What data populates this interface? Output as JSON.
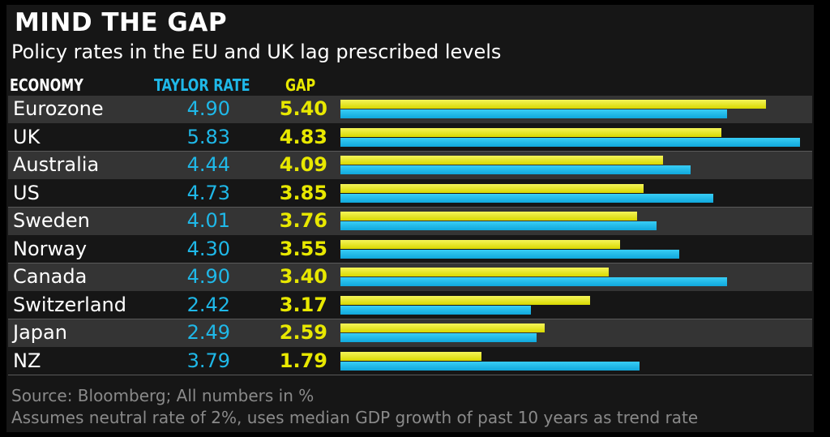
{
  "header": {
    "title": "MIND THE GAP",
    "subtitle": "Policy rates in the EU and UK lag prescribed levels",
    "col_economy": "ECONOMY",
    "col_taylor": "TAYLOR RATE",
    "col_gap": "GAP"
  },
  "colors": {
    "taylor": "#1fb8e8",
    "gap": "#e8e800",
    "background": "#161616",
    "row_shade": "#343434"
  },
  "chart_data": {
    "type": "bar",
    "orientation": "horizontal",
    "title": "MIND THE GAP",
    "subtitle": "Policy rates in the EU and UK lag prescribed levels",
    "categories": [
      "Eurozone",
      "UK",
      "Australia",
      "US",
      "Sweden",
      "Norway",
      "Canada",
      "Switzerland",
      "Japan",
      "NZ"
    ],
    "series": [
      {
        "name": "TAYLOR RATE",
        "values": [
          4.9,
          5.83,
          4.44,
          4.73,
          4.01,
          4.3,
          4.9,
          2.42,
          2.49,
          3.79
        ],
        "labels": [
          "4.90",
          "5.83",
          "4.44",
          "4.73",
          "4.01",
          "4.30",
          "4.90",
          "2.42",
          "2.49",
          "3.79"
        ]
      },
      {
        "name": "GAP",
        "values": [
          5.4,
          4.83,
          4.09,
          3.85,
          3.76,
          3.55,
          3.4,
          3.17,
          2.59,
          1.79
        ],
        "labels": [
          "5.40",
          "4.83",
          "4.09",
          "3.85",
          "3.76",
          "3.55",
          "3.40",
          "3.17",
          "2.59",
          "1.79"
        ]
      }
    ],
    "xlim": [
      0,
      5.83
    ],
    "grid": false,
    "legend": "column headers"
  },
  "footer": {
    "source": "Source: Bloomberg; All numbers in %",
    "note": "Assumes neutral rate of 2%, uses median GDP growth of past 10 years as trend rate"
  }
}
